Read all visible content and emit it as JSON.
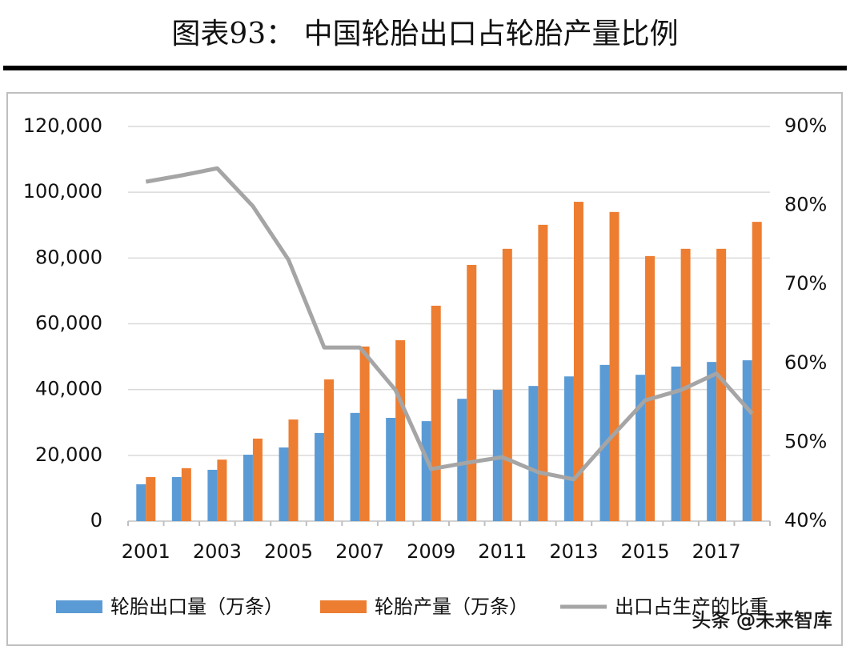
{
  "chart_data": {
    "type": "bar-line",
    "title": "图表93：  中国轮胎出口占轮胎产量比例",
    "categories": [
      "2001",
      null,
      "2003",
      null,
      "2005",
      null,
      "2007",
      null,
      "2009",
      null,
      "2011",
      null,
      "2013",
      null,
      "2015",
      null,
      "2017",
      null
    ],
    "series": [
      {
        "name": "轮胎出口量（万条）",
        "type": "bar",
        "color": "#5b9bd5",
        "values": [
          11200,
          13400,
          15600,
          20200,
          22400,
          26800,
          32900,
          31400,
          30400,
          37200,
          39900,
          41100,
          44000,
          47500,
          44500,
          47000,
          48400,
          48900
        ]
      },
      {
        "name": "轮胎产量（万条）",
        "type": "bar",
        "color": "#ed7d31",
        "values": [
          13400,
          16100,
          18700,
          25100,
          30900,
          43100,
          53100,
          55000,
          65500,
          77900,
          82800,
          90100,
          97100,
          94000,
          80600,
          82800,
          82800,
          91000
        ]
      },
      {
        "name": "出口占生产的比重",
        "type": "line",
        "axis": "y2",
        "color": "#a5a5a5",
        "values": [
          83.0,
          83.8,
          84.7,
          79.9,
          73.1,
          62.0,
          62.0,
          56.6,
          46.6,
          47.4,
          48.1,
          46.2,
          45.3,
          50.4,
          55.3,
          56.6,
          58.7,
          53.6
        ]
      }
    ],
    "ylim": [
      0,
      120000
    ],
    "yticks": [
      0,
      {
        "value": 20000,
        "label": "20,000"
      },
      {
        "value": 40000,
        "label": "40,000"
      },
      {
        "value": 60000,
        "label": "60,000"
      },
      {
        "value": 80000,
        "label": "80,000"
      },
      {
        "value": 100000,
        "label": "100,000"
      },
      {
        "value": 120000,
        "label": "120,000"
      }
    ],
    "y2lim": [
      40,
      90
    ],
    "y2ticks": [
      {
        "value": 40,
        "label": "40%"
      },
      {
        "value": 50,
        "label": "50%"
      },
      {
        "value": 60,
        "label": "60%"
      },
      {
        "value": 70,
        "label": "70%"
      },
      {
        "value": 80,
        "label": "80%"
      },
      {
        "value": 90,
        "label": "90%"
      }
    ],
    "grid": true,
    "legend": "bottom"
  },
  "watermark": "头条 @未来智库"
}
